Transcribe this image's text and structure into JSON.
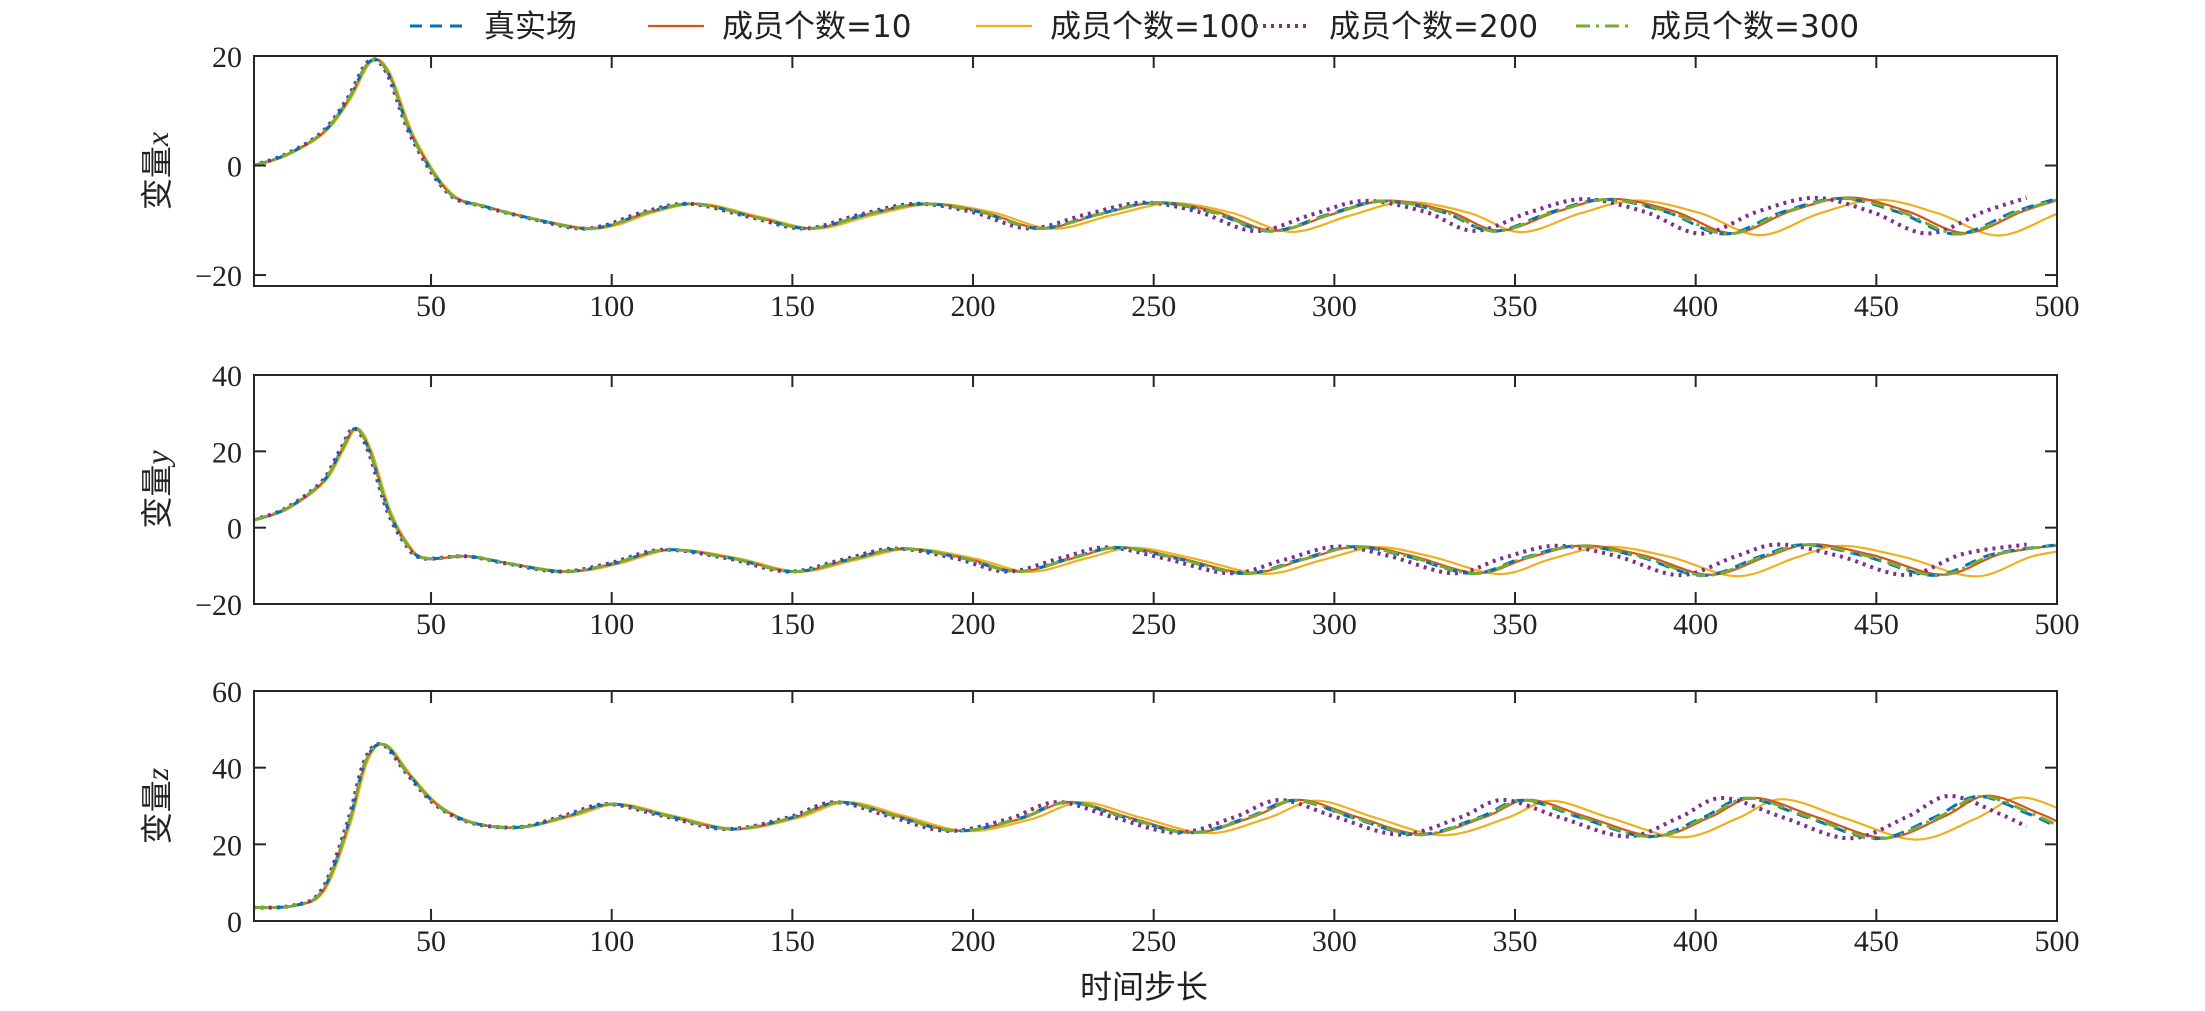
{
  "chart_data": {
    "type": "line",
    "xlabel": "时间步长",
    "legend_position": "top-center",
    "legend": [
      {
        "name": "真实场",
        "color": "#0072BD",
        "style": "dashed"
      },
      {
        "name": "成员个数=10",
        "color": "#D95319",
        "style": "solid"
      },
      {
        "name": "成员个数=100",
        "color": "#EDB120",
        "style": "solid"
      },
      {
        "name": "成员个数=200",
        "color": "#7E2F8E",
        "style": "dotted"
      },
      {
        "name": "成员个数=300",
        "color": "#77AC30",
        "style": "dashdot"
      }
    ],
    "x_range": [
      1,
      500
    ],
    "x_ticks": [
      50,
      100,
      150,
      200,
      250,
      300,
      350,
      400,
      450,
      500
    ],
    "panels": [
      {
        "ylabel": "变量",
        "ylabel_var": "x",
        "ylim": [
          -22,
          20
        ],
        "y_ticks": [
          20,
          0,
          -20
        ],
        "y_tick_labels": [
          "20",
          "0",
          "−20"
        ],
        "x": [
          1,
          10,
          20,
          27,
          33,
          38,
          45,
          55,
          65,
          80,
          92,
          100,
          110,
          123,
          140,
          155,
          170,
          186,
          202,
          218,
          234,
          250,
          266,
          282,
          298,
          313,
          330,
          344,
          360,
          375,
          392,
          408,
          424,
          440,
          456,
          472,
          488,
          500
        ],
        "y": [
          0,
          2,
          6,
          12,
          19,
          17,
          5,
          -5,
          -7.5,
          -10,
          -11.5,
          -10.8,
          -8.5,
          -7,
          -9.5,
          -11.5,
          -9,
          -7,
          -8.5,
          -11.5,
          -9,
          -6.8,
          -8.5,
          -12,
          -9,
          -6.5,
          -8.5,
          -12,
          -8.5,
          -6.2,
          -8.5,
          -12.5,
          -8.5,
          -6,
          -8.5,
          -12.5,
          -8.5,
          -6
        ]
      },
      {
        "ylabel": "变量",
        "ylabel_var": "y",
        "ylim": [
          -20,
          40
        ],
        "y_ticks": [
          40,
          20,
          0,
          -20
        ],
        "y_tick_labels": [
          "40",
          "20",
          "0",
          "−20"
        ],
        "x": [
          1,
          10,
          20,
          25,
          29,
          33,
          38,
          43,
          48,
          60,
          72,
          87,
          100,
          115,
          133,
          150,
          165,
          180,
          197,
          212,
          227,
          240,
          256,
          275,
          290,
          305,
          320,
          338,
          352,
          367,
          384,
          402,
          418,
          430,
          447,
          466,
          482,
          500
        ],
        "y": [
          2,
          5,
          12,
          20,
          26,
          20,
          5,
          -4,
          -8,
          -7.5,
          -9.5,
          -11.5,
          -9.5,
          -5.8,
          -8,
          -11.5,
          -8.5,
          -5.5,
          -8,
          -11.5,
          -8,
          -5.2,
          -8,
          -12,
          -8.5,
          -5,
          -7.5,
          -12,
          -8,
          -4.8,
          -7.5,
          -12.5,
          -7.5,
          -4.5,
          -7.5,
          -12.5,
          -7,
          -4.5
        ]
      },
      {
        "ylabel": "变量",
        "ylabel_var": "z",
        "ylim": [
          0,
          60
        ],
        "y_ticks": [
          60,
          40,
          20,
          0
        ],
        "y_tick_labels": [
          "60",
          "40",
          "20",
          "0"
        ],
        "x": [
          1,
          12,
          20,
          27,
          32,
          37,
          44,
          52,
          62,
          75,
          88,
          100,
          115,
          133,
          150,
          163,
          178,
          195,
          212,
          226,
          242,
          260,
          276,
          289,
          305,
          323,
          340,
          352,
          368,
          387,
          402,
          414,
          431,
          450,
          466,
          478,
          492,
          500
        ],
        "y": [
          3.5,
          4,
          8,
          25,
          42,
          46,
          38,
          30,
          25.5,
          24.5,
          27.5,
          30.5,
          27.5,
          24,
          27,
          31,
          27.5,
          23.5,
          26.5,
          31,
          27,
          23,
          27,
          31.5,
          27,
          22.5,
          27,
          31.5,
          27,
          22,
          27,
          32,
          27,
          21.5,
          27,
          32.5,
          28,
          24.5
        ]
      }
    ]
  }
}
